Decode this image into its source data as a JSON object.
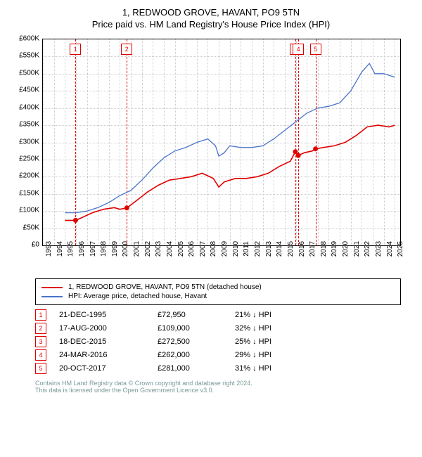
{
  "title1": "1, REDWOOD GROVE, HAVANT, PO9 5TN",
  "title2": "Price paid vs. HM Land Registry's House Price Index (HPI)",
  "chart": {
    "type": "line",
    "x_years": [
      1993,
      1994,
      1995,
      1996,
      1997,
      1998,
      1999,
      2000,
      2001,
      2002,
      2003,
      2004,
      2005,
      2006,
      2007,
      2008,
      2009,
      2010,
      2011,
      2012,
      2013,
      2014,
      2015,
      2016,
      2017,
      2018,
      2019,
      2020,
      2021,
      2022,
      2023,
      2024,
      2025
    ],
    "y_min": 0,
    "y_max": 600000,
    "y_tick_step": 50000,
    "y_tick_labels": [
      "£0",
      "£50K",
      "£100K",
      "£150K",
      "£200K",
      "£250K",
      "£300K",
      "£350K",
      "£400K",
      "£450K",
      "£500K",
      "£550K",
      "£600K"
    ],
    "grid_color": "#cccccc",
    "background": "#ffffff",
    "series_red": {
      "color": "#e00000",
      "label": "1, REDWOOD GROVE, HAVANT, PO9 5TN (detached house)",
      "points": [
        [
          1995.0,
          73000
        ],
        [
          1995.97,
          72950
        ],
        [
          1996.5,
          80000
        ],
        [
          1997.5,
          95000
        ],
        [
          1998.5,
          105000
        ],
        [
          1999.5,
          110000
        ],
        [
          2000.0,
          105000
        ],
        [
          2000.63,
          109000
        ],
        [
          2001.5,
          130000
        ],
        [
          2002.5,
          155000
        ],
        [
          2003.5,
          175000
        ],
        [
          2004.5,
          190000
        ],
        [
          2005.5,
          195000
        ],
        [
          2006.5,
          200000
        ],
        [
          2007.5,
          210000
        ],
        [
          2008.5,
          195000
        ],
        [
          2009.0,
          170000
        ],
        [
          2009.5,
          185000
        ],
        [
          2010.5,
          195000
        ],
        [
          2011.5,
          195000
        ],
        [
          2012.5,
          200000
        ],
        [
          2013.5,
          210000
        ],
        [
          2014.5,
          230000
        ],
        [
          2015.5,
          245000
        ],
        [
          2015.96,
          272500
        ],
        [
          2016.23,
          262000
        ],
        [
          2016.8,
          270000
        ],
        [
          2017.5,
          275000
        ],
        [
          2017.8,
          281000
        ],
        [
          2018.5,
          285000
        ],
        [
          2019.5,
          290000
        ],
        [
          2020.5,
          300000
        ],
        [
          2021.5,
          320000
        ],
        [
          2022.5,
          345000
        ],
        [
          2023.5,
          350000
        ],
        [
          2024.5,
          345000
        ],
        [
          2025.0,
          350000
        ]
      ],
      "sale_dots": [
        [
          1995.97,
          72950
        ],
        [
          2000.63,
          109000
        ],
        [
          2015.96,
          272500
        ],
        [
          2016.23,
          262000
        ],
        [
          2017.8,
          281000
        ]
      ]
    },
    "series_blue": {
      "color": "#4a74c9",
      "label": "HPI: Average price, detached house, Havant",
      "points": [
        [
          1995.0,
          95000
        ],
        [
          1996.0,
          95000
        ],
        [
          1997.0,
          100000
        ],
        [
          1998.0,
          110000
        ],
        [
          1999.0,
          125000
        ],
        [
          2000.0,
          145000
        ],
        [
          2001.0,
          160000
        ],
        [
          2002.0,
          190000
        ],
        [
          2003.0,
          225000
        ],
        [
          2004.0,
          255000
        ],
        [
          2005.0,
          275000
        ],
        [
          2006.0,
          285000
        ],
        [
          2007.0,
          300000
        ],
        [
          2008.0,
          310000
        ],
        [
          2008.7,
          290000
        ],
        [
          2009.0,
          260000
        ],
        [
          2009.5,
          270000
        ],
        [
          2010.0,
          290000
        ],
        [
          2011.0,
          285000
        ],
        [
          2012.0,
          285000
        ],
        [
          2013.0,
          290000
        ],
        [
          2014.0,
          310000
        ],
        [
          2015.0,
          335000
        ],
        [
          2016.0,
          360000
        ],
        [
          2017.0,
          385000
        ],
        [
          2018.0,
          400000
        ],
        [
          2019.0,
          405000
        ],
        [
          2020.0,
          415000
        ],
        [
          2021.0,
          450000
        ],
        [
          2022.0,
          505000
        ],
        [
          2022.7,
          530000
        ],
        [
          2023.2,
          500000
        ],
        [
          2024.0,
          500000
        ],
        [
          2024.5,
          495000
        ],
        [
          2025.0,
          490000
        ]
      ]
    },
    "markers": [
      {
        "n": "1",
        "year": 1995.97
      },
      {
        "n": "2",
        "year": 2000.63
      },
      {
        "n": "3",
        "year": 2015.96
      },
      {
        "n": "4",
        "year": 2016.23
      },
      {
        "n": "5",
        "year": 2017.8
      }
    ]
  },
  "legend": {
    "red": "1, REDWOOD GROVE, HAVANT, PO9 5TN (detached house)",
    "blue": "HPI: Average price, detached house, Havant"
  },
  "sales": [
    {
      "n": "1",
      "date": "21-DEC-1995",
      "price": "£72,950",
      "pct": "21% ↓ HPI"
    },
    {
      "n": "2",
      "date": "17-AUG-2000",
      "price": "£109,000",
      "pct": "32% ↓ HPI"
    },
    {
      "n": "3",
      "date": "18-DEC-2015",
      "price": "£272,500",
      "pct": "25% ↓ HPI"
    },
    {
      "n": "4",
      "date": "24-MAR-2016",
      "price": "£262,000",
      "pct": "29% ↓ HPI"
    },
    {
      "n": "5",
      "date": "20-OCT-2017",
      "price": "£281,000",
      "pct": "31% ↓ HPI"
    }
  ],
  "footer1": "Contains HM Land Registry data © Crown copyright and database right 2024.",
  "footer2": "This data is licensed under the Open Government Licence v3.0."
}
